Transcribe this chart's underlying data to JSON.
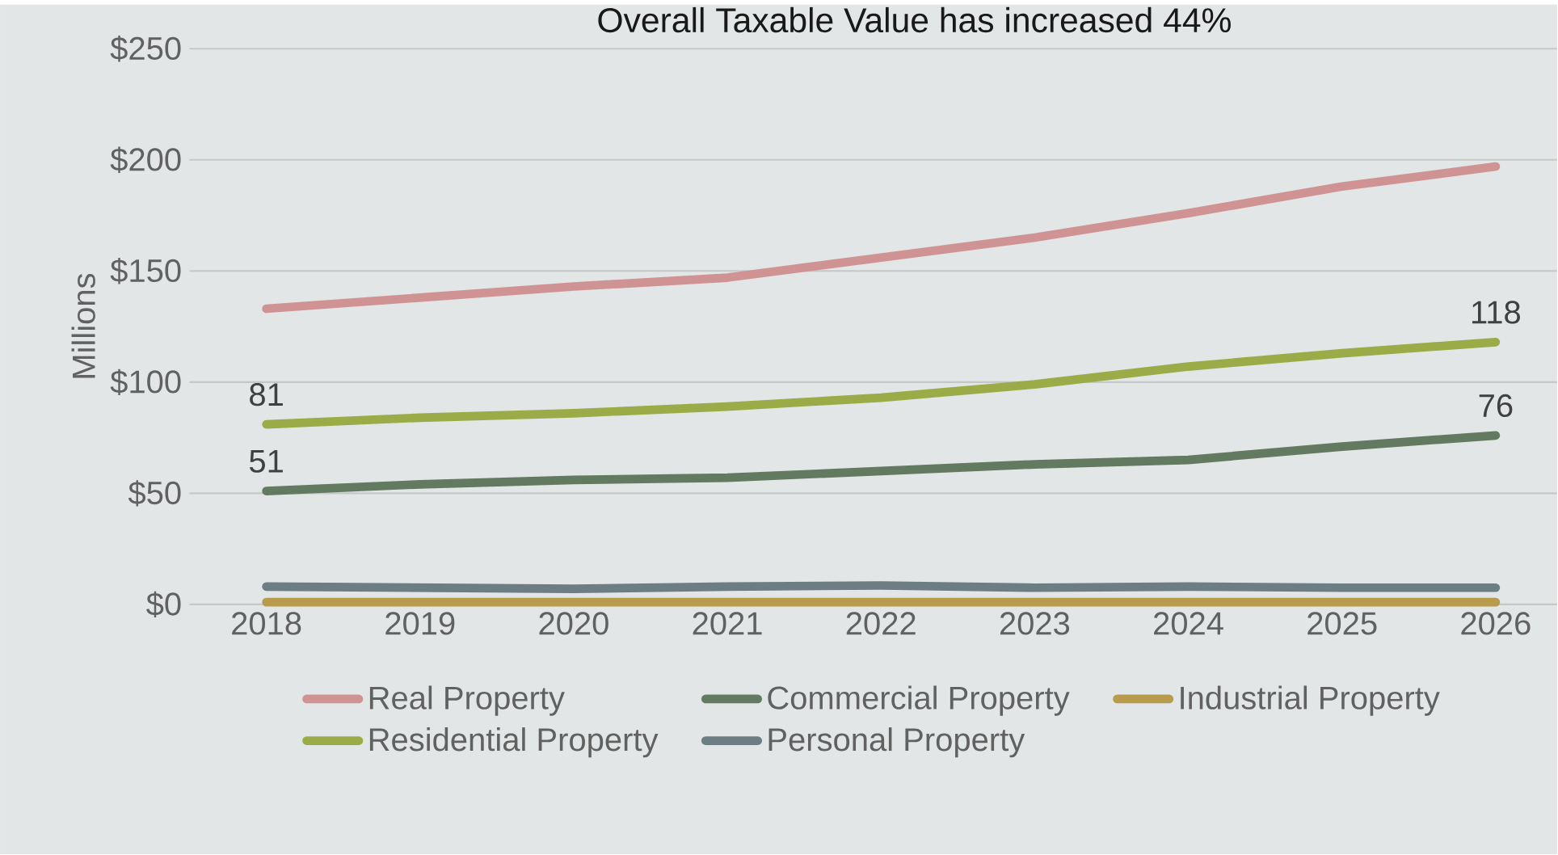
{
  "chart_data": {
    "type": "line",
    "title": "Overall Taxable Value has increased 44%",
    "ylabel": "Millions",
    "categories": [
      "2018",
      "2019",
      "2020",
      "2021",
      "2022",
      "2023",
      "2024",
      "2025",
      "2026"
    ],
    "series": [
      {
        "name": "Real Property",
        "color": "#d09393",
        "values": [
          133,
          138,
          143,
          147,
          156,
          165,
          176,
          188,
          197
        ]
      },
      {
        "name": "Commercial Property",
        "color": "#627a60",
        "values": [
          51,
          54,
          56,
          57,
          60,
          63,
          65,
          71,
          76
        ],
        "value_labels": [
          "51",
          null,
          null,
          null,
          null,
          null,
          null,
          null,
          "76"
        ]
      },
      {
        "name": "Industrial Property",
        "color": "#b89c4c",
        "values": [
          1,
          1,
          1,
          1,
          1,
          1,
          1,
          1,
          1
        ]
      },
      {
        "name": "Residential Property",
        "color": "#9aab48",
        "values": [
          81,
          84,
          86,
          89,
          93,
          99,
          107,
          113,
          118
        ],
        "value_labels": [
          "81",
          null,
          null,
          null,
          null,
          null,
          null,
          null,
          "118"
        ]
      },
      {
        "name": "Personal Property",
        "color": "#6c7e84",
        "values": [
          8,
          7.5,
          7,
          8,
          8.5,
          7.5,
          8,
          7.5,
          7.5
        ]
      }
    ],
    "ylim": [
      0,
      250
    ],
    "yticks": [
      {
        "value": 0,
        "label": "$0"
      },
      {
        "value": 50,
        "label": "$50"
      },
      {
        "value": 100,
        "label": "$100"
      },
      {
        "value": 150,
        "label": "$150"
      },
      {
        "value": 200,
        "label": "$200"
      },
      {
        "value": 250,
        "label": "$250"
      }
    ],
    "grid": "y",
    "legend": "bottom",
    "marker": "none",
    "line_style": "solid"
  }
}
